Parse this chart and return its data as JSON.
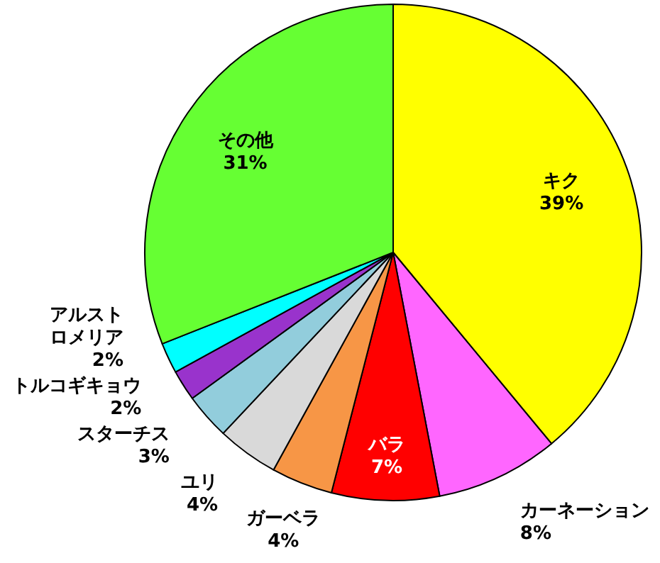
{
  "chart_data": {
    "type": "pie",
    "categories": [
      "キク",
      "カーネーション",
      "バラ",
      "ガーベラ",
      "ユリ",
      "スターチス",
      "トルコギキョウ",
      "アルストロメリア",
      "その他"
    ],
    "values": [
      39,
      8,
      7,
      4,
      4,
      3,
      2,
      2,
      31
    ],
    "colors": [
      "#ffff00",
      "#ff66ff",
      "#ff0000",
      "#f79646",
      "#d9d9d9",
      "#92cddc",
      "#9933cc",
      "#00ffff",
      "#66ff33"
    ],
    "value_labels": [
      "39%",
      "8%",
      "7%",
      "4%",
      "4%",
      "3%",
      "2%",
      "2%",
      "31%"
    ]
  }
}
